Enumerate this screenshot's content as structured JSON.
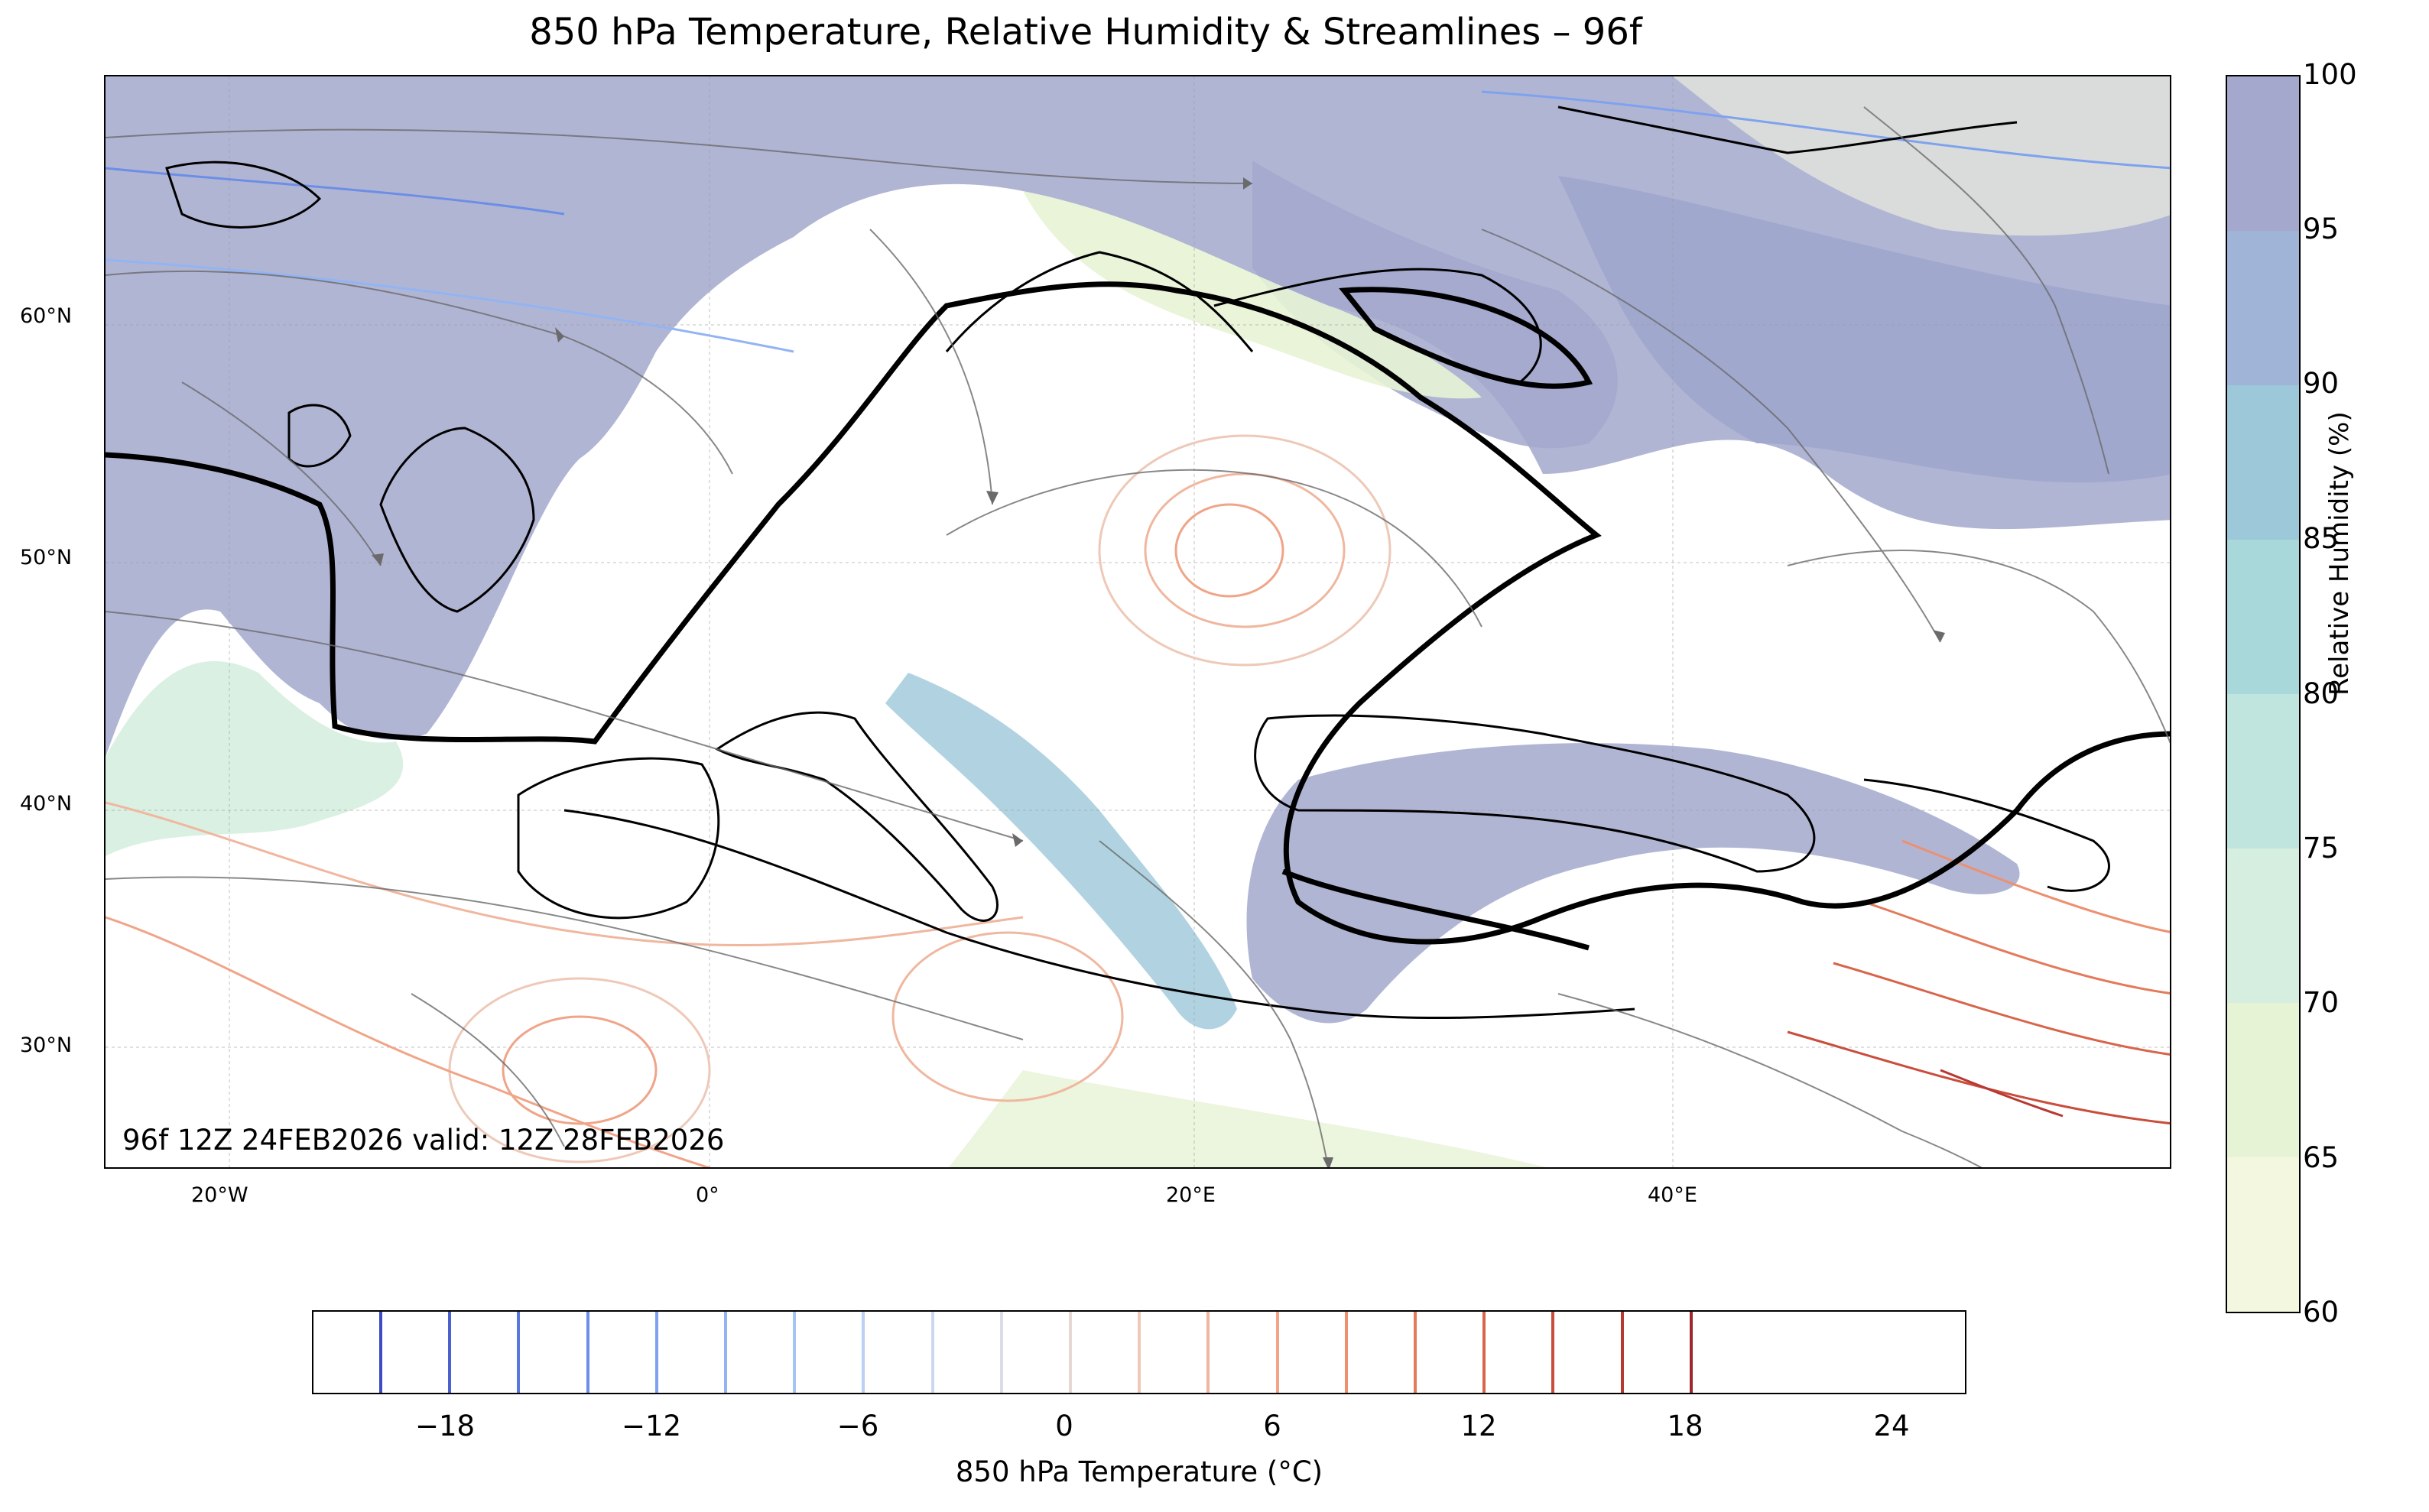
{
  "title": "850 hPa Temperature, Relative Humidity & Streamlines – 96f",
  "run_label": "96f 12Z 24FEB2026 valid: 12Z 28FEB2026",
  "map": {
    "lat_labels": [
      "60°N",
      "50°N",
      "40°N",
      "30°N"
    ],
    "lon_labels": [
      "20°W",
      "0°",
      "20°E",
      "40°E"
    ]
  },
  "rh_colorbar": {
    "title": "Relative Humidity (%)",
    "ticks": [
      "100",
      "95",
      "90",
      "85",
      "80",
      "75",
      "70",
      "65",
      "60"
    ],
    "colors": [
      "#f4f7df",
      "#e7f3d5",
      "#d6eee0",
      "#bfe5de",
      "#a9d8db",
      "#9dc8da",
      "#9fb4d6",
      "#a3a8cc"
    ]
  },
  "temp_colorbar": {
    "title": "850 hPa Temperature (°C)",
    "ticks": [
      "−18",
      "−12",
      "−6",
      "0",
      "6",
      "12",
      "18",
      "24"
    ],
    "line_colors": [
      "#3a4cc0",
      "#4a62d0",
      "#5a78dc",
      "#6c8ee6",
      "#7fa2ee",
      "#93b4f2",
      "#a8c4f4",
      "#bbd0f2",
      "#cbd8ee",
      "#d8dde8",
      "#e6d9d3",
      "#eec9b8",
      "#f0b79f",
      "#f0a488",
      "#ec9070",
      "#e47a5c",
      "#d8644a",
      "#c94e3c",
      "#b83832",
      "#a3242c"
    ]
  }
}
